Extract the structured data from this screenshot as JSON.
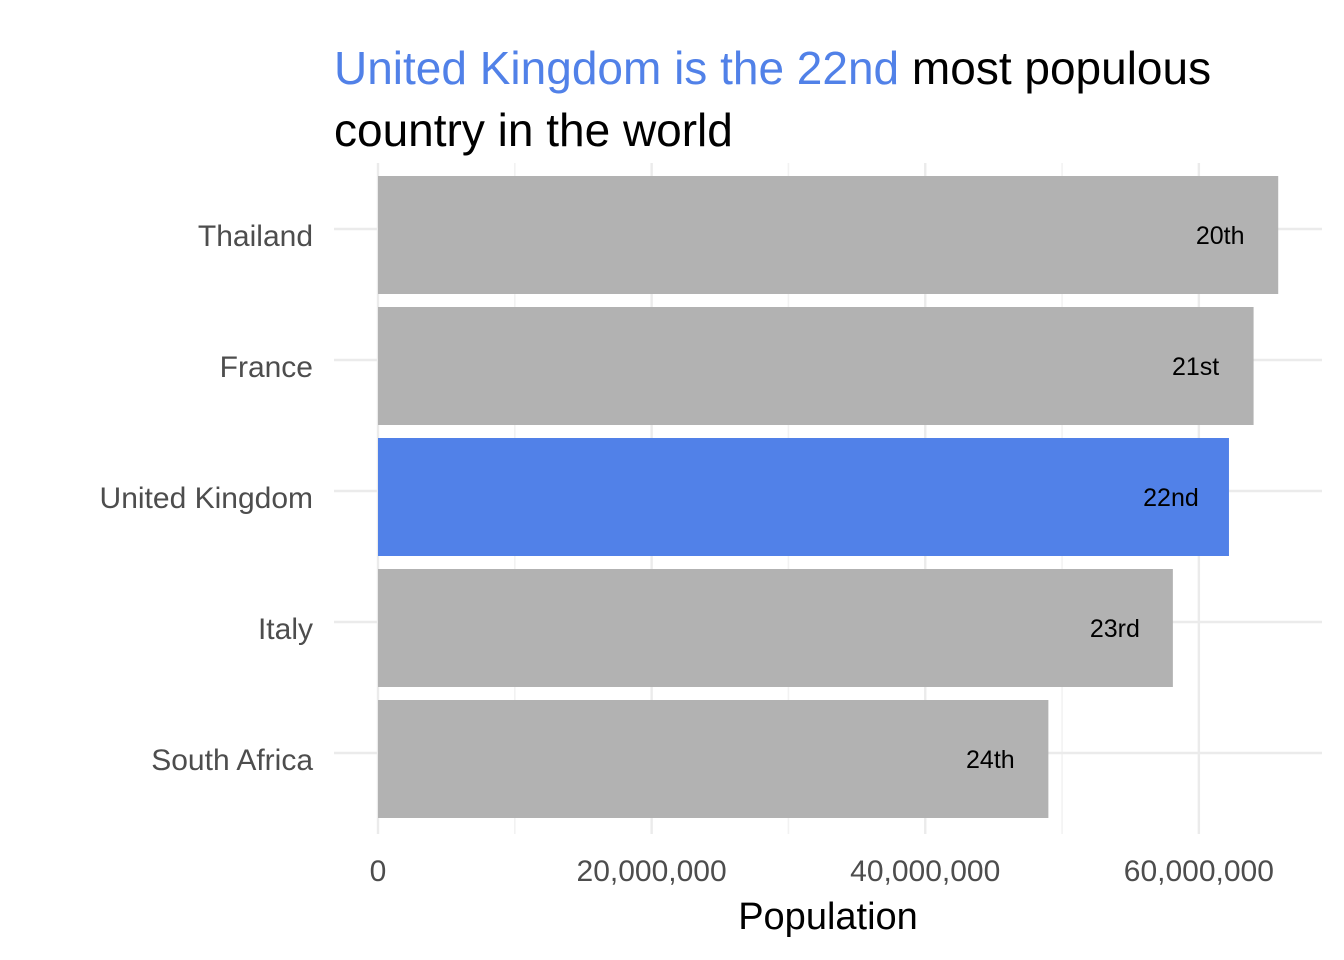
{
  "chart_data": {
    "type": "bar",
    "orientation": "horizontal",
    "title": {
      "highlight": "United Kingdom is the 22nd",
      "rest": " most populous",
      "line2": "country in the world"
    },
    "xlabel": "Population",
    "ylabel": "",
    "xlim": [
      0,
      69000000
    ],
    "x_ticks": [
      0,
      20000000,
      40000000,
      60000000
    ],
    "x_tick_labels": [
      "0",
      "20,000,000",
      "40,000,000",
      "60,000,000"
    ],
    "grid": true,
    "legend": "none",
    "categories": [
      "Thailand",
      "France",
      "United Kingdom",
      "Italy",
      "South Africa"
    ],
    "values": [
      65800000,
      64000000,
      62200000,
      58100000,
      49000000
    ],
    "labels": [
      "20th",
      "21st",
      "22nd",
      "23rd",
      "24th"
    ],
    "highlight": "United Kingdom",
    "colors": {
      "highlight": "#5181e8",
      "default": "#b2b2b2",
      "grid_major": "#ebebeb",
      "grid_minor": "#f2f2f2",
      "tick_text": "#4d4d4d"
    }
  }
}
